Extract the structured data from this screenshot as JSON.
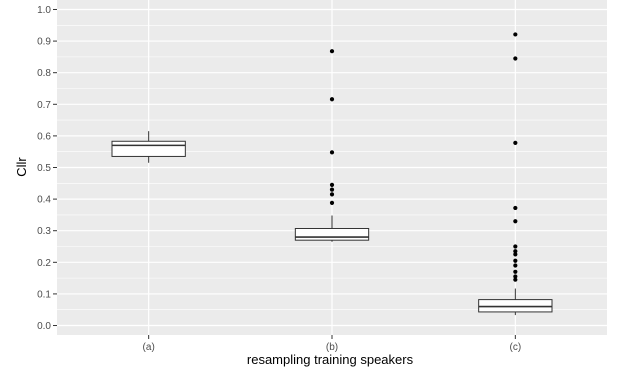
{
  "chart_data": {
    "type": "box",
    "xlabel": "resampling training speakers",
    "ylabel": "Cllr",
    "ylim": [
      -0.03,
      1.03
    ],
    "yticks": [
      0.0,
      0.1,
      0.2,
      0.3,
      0.4,
      0.5,
      0.6,
      0.7,
      0.8,
      0.9,
      1.0
    ],
    "ytick_labels": [
      "0.0",
      "0.1",
      "0.2",
      "0.3",
      "0.4",
      "0.5",
      "0.6",
      "0.7",
      "0.8",
      "0.9",
      "1.0"
    ],
    "grid": true,
    "categories": [
      "(a)",
      "(b)",
      "(c)"
    ],
    "boxes": [
      {
        "category": "(a)",
        "whisker_low": 0.515,
        "q1": 0.535,
        "median": 0.57,
        "q3": 0.583,
        "whisker_high": 0.615,
        "outliers": []
      },
      {
        "category": "(b)",
        "whisker_low": 0.265,
        "q1": 0.27,
        "median": 0.28,
        "q3": 0.307,
        "whisker_high": 0.348,
        "outliers": [
          0.388,
          0.415,
          0.43,
          0.445,
          0.548,
          0.716,
          0.868
        ]
      },
      {
        "category": "(c)",
        "whisker_low": 0.033,
        "q1": 0.043,
        "median": 0.06,
        "q3": 0.082,
        "whisker_high": 0.117,
        "outliers": [
          0.145,
          0.155,
          0.17,
          0.19,
          0.205,
          0.225,
          0.235,
          0.25,
          0.33,
          0.372,
          0.578,
          0.845,
          0.921
        ]
      }
    ],
    "colors": {
      "panel_background": "#ebebeb",
      "gridline": "#ffffff",
      "box_fill": "#ffffff",
      "box_stroke": "#333333",
      "outlier": "#000000"
    }
  }
}
